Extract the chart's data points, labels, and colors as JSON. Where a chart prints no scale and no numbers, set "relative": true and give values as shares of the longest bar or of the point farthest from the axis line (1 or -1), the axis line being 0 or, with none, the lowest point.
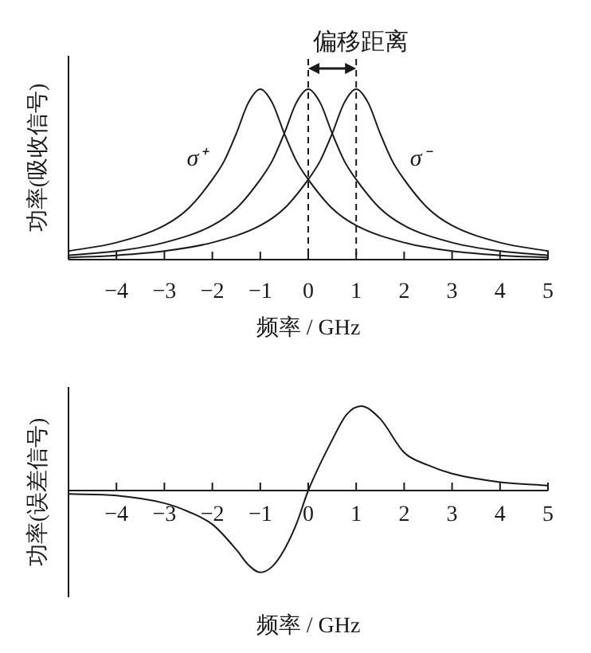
{
  "chart_data": [
    {
      "type": "line",
      "relative": true,
      "ylabel": "功率(吸收信号)",
      "xlabel": "频率 / GHz",
      "xlim": [
        -5,
        5
      ],
      "xticks": [
        {
          "value": -4,
          "label": "−4"
        },
        {
          "value": -3,
          "label": "−3"
        },
        {
          "value": -2,
          "label": "−2"
        },
        {
          "value": -1,
          "label": "−1"
        },
        0,
        1,
        2,
        3,
        4,
        5
      ],
      "color": "#1a1a1a",
      "grid": false,
      "line_style": "solid",
      "series": [
        {
          "name": "σ⁺",
          "x": [
            -5,
            -4,
            -3,
            -2.5,
            -2,
            -1.75,
            -1.5,
            -1.25,
            -1,
            -0.75,
            -0.5,
            -0.25,
            0,
            0.5,
            1,
            2,
            3,
            4,
            5
          ],
          "values": [
            0.05,
            0.1,
            0.2,
            0.3,
            0.47,
            0.58,
            0.74,
            0.92,
            1,
            0.92,
            0.74,
            0.58,
            0.47,
            0.3,
            0.2,
            0.1,
            0.05,
            0.025,
            0.012
          ]
        },
        {
          "x": [
            -5,
            -4,
            -3,
            -2,
            -1.5,
            -1,
            -0.75,
            -0.5,
            -0.25,
            0,
            0.25,
            0.5,
            0.75,
            1,
            1.5,
            2,
            3,
            4,
            5
          ],
          "values": [
            0.025,
            0.05,
            0.1,
            0.2,
            0.3,
            0.47,
            0.58,
            0.74,
            0.92,
            1,
            0.92,
            0.74,
            0.58,
            0.47,
            0.3,
            0.2,
            0.1,
            0.05,
            0.025
          ]
        },
        {
          "name": "σ⁻",
          "x": [
            -5,
            -4,
            -3,
            -2,
            -1,
            -0.5,
            0,
            0.25,
            0.5,
            0.75,
            1,
            1.25,
            1.5,
            1.75,
            2,
            2.5,
            3,
            4,
            5
          ],
          "values": [
            0.012,
            0.025,
            0.05,
            0.1,
            0.2,
            0.3,
            0.47,
            0.58,
            0.74,
            0.92,
            1,
            0.92,
            0.74,
            0.58,
            0.47,
            0.3,
            0.2,
            0.1,
            0.05
          ]
        }
      ],
      "ref_lines": [
        {
          "axis": "x",
          "value": 0,
          "line_style": "dashed"
        },
        {
          "axis": "x",
          "value": 1,
          "line_style": "dashed"
        }
      ],
      "annotations": [
        "偏移距离"
      ]
    },
    {
      "type": "line",
      "relative": true,
      "ylabel": "功率(误差信号)",
      "xlabel": "频率 / GHz",
      "xlim": [
        -5,
        5
      ],
      "xticks": [
        {
          "value": -4,
          "label": "−4"
        },
        {
          "value": -3,
          "label": "−3"
        },
        {
          "value": -2,
          "label": "−2"
        },
        {
          "value": -1,
          "label": "−1"
        },
        0,
        1,
        2,
        3,
        4,
        5
      ],
      "color": "#1a1a1a",
      "grid": false,
      "line_style": "solid",
      "series": [
        {
          "x": [
            -5,
            -4,
            -3,
            -2.5,
            -2,
            -1.5,
            -1.25,
            -1,
            -0.75,
            -0.5,
            -0.25,
            0,
            0.5,
            0.8,
            1.1,
            1.5,
            2,
            2.5,
            3,
            4,
            5
          ],
          "values": [
            -0.04,
            -0.06,
            -0.15,
            -0.25,
            -0.4,
            -0.7,
            -0.88,
            -0.97,
            -0.9,
            -0.7,
            -0.4,
            0,
            0.6,
            0.9,
            1,
            0.85,
            0.45,
            0.3,
            0.2,
            0.1,
            0.06
          ]
        }
      ]
    }
  ]
}
